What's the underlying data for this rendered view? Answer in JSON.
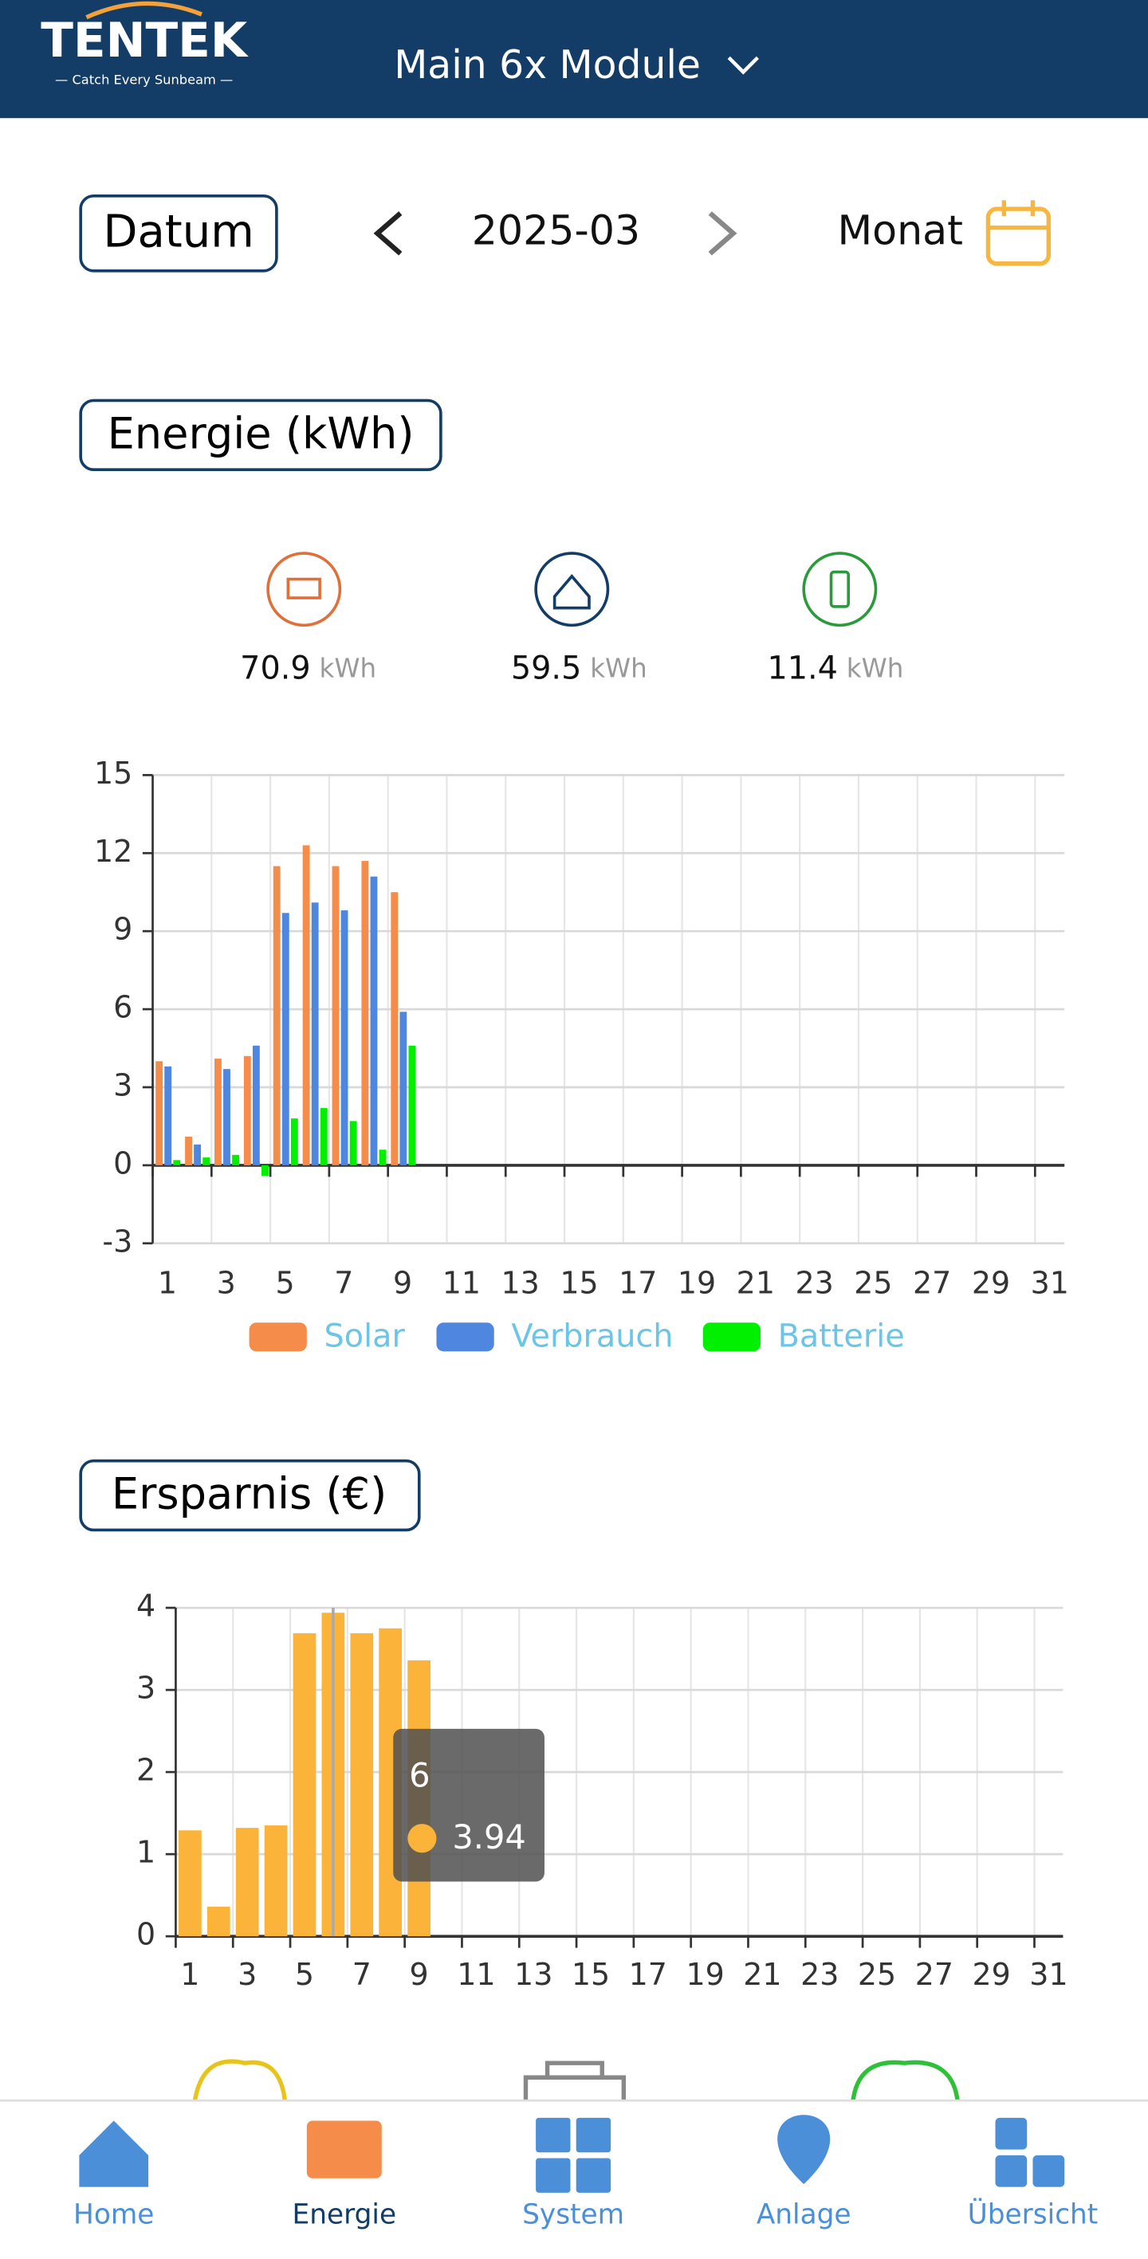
{
  "header": {
    "logo": "TENTEK",
    "tagline": "— Catch Every Sunbeam —",
    "device": "Main 6x Module"
  },
  "date_bar": {
    "label": "Datum",
    "date": "2025-03",
    "period": "Monat"
  },
  "summary": [
    {
      "value": "70.9",
      "unit": "kWh"
    },
    {
      "value": "59.5",
      "unit": "kWh"
    },
    {
      "value": "11.4",
      "unit": "kWh"
    }
  ],
  "chart_data": [
    {
      "type": "grouped_bar",
      "title": "Energie (kWh)",
      "categories": [
        "1",
        null,
        "3",
        null,
        "5",
        null,
        "7",
        null,
        "9",
        null,
        "11",
        null,
        "13",
        null,
        "15",
        null,
        "17",
        null,
        "19",
        null,
        "21",
        null,
        "23",
        null,
        "25",
        null,
        "27",
        null,
        "29",
        null,
        "31"
      ],
      "series": [
        {
          "name": "Solar",
          "color": "#f68c4a",
          "values": [
            4.0,
            1.1,
            4.1,
            4.2,
            11.5,
            12.3,
            11.5,
            11.7,
            10.5,
            null,
            null,
            null,
            null,
            null,
            null,
            null,
            null,
            null,
            null,
            null,
            null,
            null,
            null,
            null,
            null,
            null,
            null,
            null,
            null,
            null,
            null
          ]
        },
        {
          "name": "Verbrauch",
          "color": "#4f86e0",
          "values": [
            3.8,
            0.8,
            3.7,
            4.6,
            9.7,
            10.1,
            9.8,
            11.1,
            5.9,
            null,
            null,
            null,
            null,
            null,
            null,
            null,
            null,
            null,
            null,
            null,
            null,
            null,
            null,
            null,
            null,
            null,
            null,
            null,
            null,
            null,
            null
          ]
        },
        {
          "name": "Batterie",
          "color": "#00f000",
          "values": [
            0.2,
            0.3,
            0.4,
            -0.4,
            1.8,
            2.2,
            1.7,
            0.6,
            4.6,
            null,
            null,
            null,
            null,
            null,
            null,
            null,
            null,
            null,
            null,
            null,
            null,
            null,
            null,
            null,
            null,
            null,
            null,
            null,
            null,
            null,
            null
          ]
        }
      ],
      "ylim": [
        -3,
        15
      ],
      "yticks": [
        -3,
        0,
        3,
        6,
        9,
        12,
        15
      ],
      "grid": true,
      "legend": "bottom"
    },
    {
      "type": "bar",
      "title": "Ersparnis (€)",
      "categories": [
        "1",
        null,
        "3",
        null,
        "5",
        null,
        "7",
        null,
        "9",
        null,
        "11",
        null,
        "13",
        null,
        "15",
        null,
        "17",
        null,
        "19",
        null,
        "21",
        null,
        "23",
        null,
        "25",
        null,
        "27",
        null,
        "29",
        null,
        "31"
      ],
      "values": [
        1.29,
        0.36,
        1.32,
        1.35,
        3.69,
        3.94,
        3.69,
        3.75,
        3.36,
        null,
        null,
        null,
        null,
        null,
        null,
        null,
        null,
        null,
        null,
        null,
        null,
        null,
        null,
        null,
        null,
        null,
        null,
        null,
        null,
        null,
        null
      ],
      "color": "#fbb33a",
      "ylim": [
        0,
        4
      ],
      "yticks": [
        0,
        1,
        2,
        3,
        4
      ],
      "grid": true,
      "tooltip": {
        "category": "6",
        "value": "3.94"
      }
    }
  ],
  "nav": [
    "Home",
    "Energie",
    "System",
    "Anlage",
    "Übersicht"
  ]
}
